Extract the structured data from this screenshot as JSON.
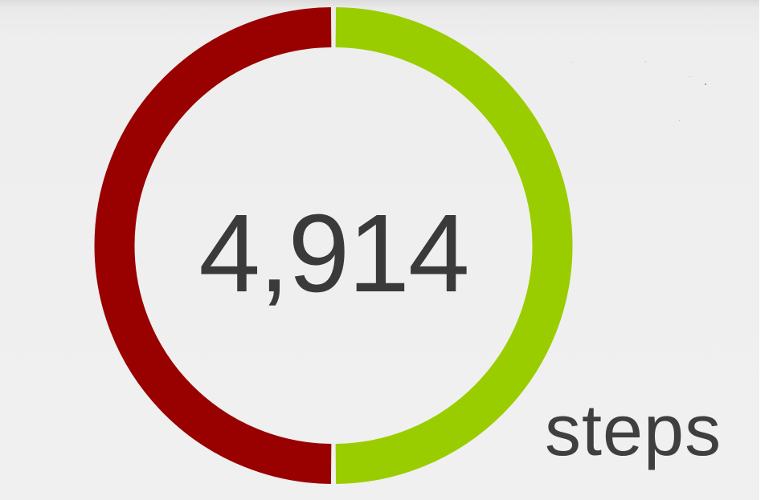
{
  "step_counter": {
    "count": "4,914",
    "unit": "steps",
    "progress_fraction": 0.5,
    "colors": {
      "completed": "#9acd00",
      "remaining": "#990000",
      "count_text": "#3a3a3a",
      "background": "#eeeeee"
    }
  }
}
